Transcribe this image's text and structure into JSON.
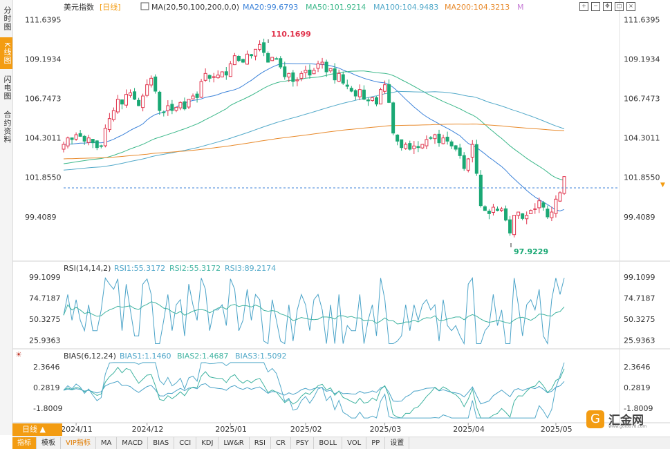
{
  "sidebar": {
    "tabs": [
      "分时图",
      "K线图",
      "闪电图",
      "合约资料"
    ],
    "active": 1
  },
  "header": {
    "symbol": "美元指数",
    "period": "[日线]",
    "ma_label": "MA(20,50,100,200,0,0)",
    "ma20": "MA20:99.6793",
    "ma50": "MA50:101.9214",
    "ma100": "MA100:104.9483",
    "ma200": "MA200:104.3213",
    "m": "M"
  },
  "toolbar_icons": [
    "zoom-in-icon",
    "zoom-out-icon",
    "pan-icon",
    "fullscreen-icon",
    "close-icon"
  ],
  "colors": {
    "up": "#e0324b",
    "down": "#1aa874",
    "ma20": "#3b82d9",
    "ma50": "#3cb88a",
    "ma100": "#52a9c9",
    "ma200": "#e8892a",
    "rsi1": "#4aa3c8",
    "rsi2": "#3fb3a0",
    "accent": "#f39c12"
  },
  "price_axis": {
    "ticks": [
      "111.6395",
      "109.1934",
      "106.7473",
      "104.3011",
      "101.8550",
      "99.4089"
    ],
    "last_marker": "101.8550"
  },
  "annotations": {
    "high": "110.1699",
    "low": "97.9229"
  },
  "rsi": {
    "label": "RSI(14,14,2)",
    "rsi1": "RSI1:55.3172",
    "rsi2": "RSI2:55.3172",
    "rsi3": "RSI3:89.2174",
    "ticks": [
      "99.1099",
      "74.7187",
      "50.3275",
      "25.9363"
    ]
  },
  "bias": {
    "label": "BIAS(6,12,24)",
    "b1": "BIAS1:1.1460",
    "b2": "BIAS2:1.4687",
    "b3": "BIAS3:1.5092",
    "ticks": [
      "2.3646",
      "0.2819",
      "-1.8009"
    ]
  },
  "time_axis": [
    "2024/11",
    "2024/12",
    "2025/01",
    "2025/02",
    "2025/03",
    "2025/04",
    "2025/05"
  ],
  "period_button": "日线 ▲",
  "bottom_tabs": [
    "指标",
    "模板",
    "VIP指标",
    "MA",
    "MACD",
    "BIAS",
    "CCI",
    "KDJ",
    "LW&R",
    "RSI",
    "CR",
    "PSY",
    "BOLL",
    "VOL",
    "PP",
    "设置"
  ],
  "logo": {
    "text": "汇金网",
    "url": "www.gold678.com"
  },
  "chart_data": {
    "type": "candlestick",
    "title": "美元指数 日线",
    "ylim": [
      97.0,
      112.0
    ],
    "closes": [
      103.9,
      104.3,
      104.2,
      104.5,
      104.4,
      104.1,
      104.3,
      104.0,
      103.7,
      103.8,
      104.9,
      105.5,
      106.0,
      106.7,
      106.4,
      107.0,
      107.1,
      106.7,
      106.3,
      106.9,
      107.6,
      108.0,
      107.2,
      106.0,
      105.9,
      106.3,
      106.0,
      106.2,
      106.5,
      106.1,
      106.7,
      106.9,
      106.8,
      107.8,
      108.3,
      108.0,
      108.1,
      108.2,
      108.4,
      108.2,
      108.9,
      109.4,
      109.1,
      109.0,
      109.5,
      109.4,
      109.8,
      110.1,
      109.6,
      109.0,
      109.3,
      109.2,
      108.7,
      108.1,
      108.3,
      107.8,
      107.9,
      108.3,
      108.5,
      108.2,
      108.5,
      108.9,
      109.0,
      108.4,
      108.6,
      107.9,
      108.3,
      107.7,
      107.5,
      107.2,
      106.9,
      107.3,
      106.7,
      106.6,
      106.8,
      106.4,
      107.3,
      107.6,
      106.5,
      104.6,
      104.1,
      103.7,
      103.9,
      103.6,
      103.8,
      103.7,
      103.9,
      104.2,
      104.3,
      104.5,
      104.0,
      104.3,
      104.1,
      103.8,
      103.6,
      103.2,
      102.4,
      103.0,
      103.9,
      102.1,
      100.1,
      99.8,
      99.6,
      100.0,
      99.8,
      99.9,
      99.2,
      98.4,
      99.5,
      99.7,
      99.3,
      99.5,
      99.8,
      99.9,
      100.4,
      100.0,
      99.4,
      99.7,
      100.5,
      100.9,
      101.9
    ],
    "high": 110.1699,
    "low": 97.9229,
    "last": 101.855,
    "ma": {
      "MA20": 99.6793,
      "MA50": 101.9214,
      "MA100": 104.9483,
      "MA200": 104.3213
    },
    "rsi": {
      "RSI1": 55.3172,
      "RSI2": 55.3172,
      "RSI3": 89.2174,
      "ylim": [
        20,
        100
      ]
    },
    "bias": {
      "BIAS1": 1.146,
      "BIAS2": 1.4687,
      "BIAS3": 1.5092,
      "ylim": [
        -3,
        3
      ]
    },
    "xlabels": [
      "2024/11",
      "2024/12",
      "2025/01",
      "2025/02",
      "2025/03",
      "2025/04",
      "2025/05"
    ]
  }
}
